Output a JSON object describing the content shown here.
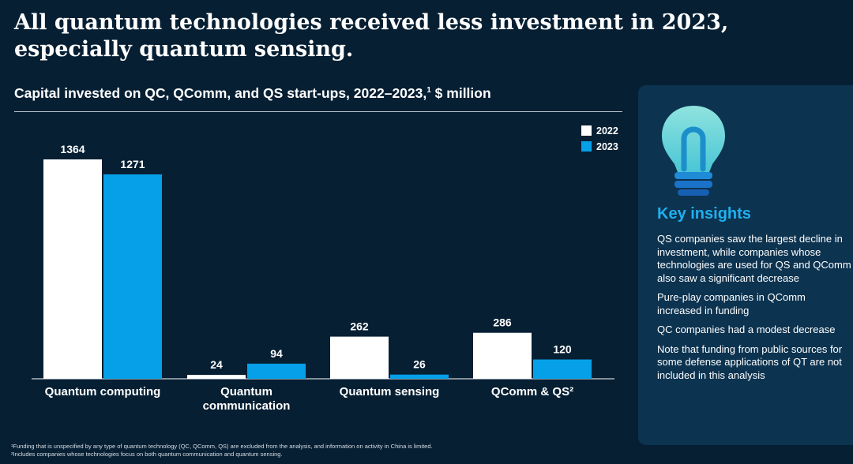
{
  "headline": "All quantum technologies received less investment in 2023, especially quantum sensing.",
  "subtitle": {
    "text": "Capital invested on QC, QComm, and QS start-ups, 2022–2023,",
    "footnote_marker": "1",
    "unit": " $ million"
  },
  "colors": {
    "background": "#061f33",
    "series_2022": "#ffffff",
    "series_2023": "#06a0e9",
    "accent": "#1fb0ef",
    "panel": "#0c3350"
  },
  "chart_data": {
    "type": "bar",
    "categories": [
      "Quantum computing",
      "Quantum communication",
      "Quantum sensing",
      "QComm & QS²"
    ],
    "category_lines": [
      [
        "Quantum computing"
      ],
      [
        "Quantum",
        "communication"
      ],
      [
        "Quantum sensing"
      ],
      [
        "QComm & QS²"
      ]
    ],
    "series": [
      {
        "name": "2022",
        "values": [
          1364,
          24,
          262,
          286
        ],
        "color": "#ffffff"
      },
      {
        "name": "2023",
        "values": [
          1271,
          94,
          26,
          120
        ],
        "color": "#06a0e9"
      }
    ],
    "legend_position": "top-right",
    "grid": false,
    "ylim": [
      0,
      1364
    ]
  },
  "insights": {
    "title": "Key insights",
    "items": [
      "QS companies saw the largest decline in investment, while companies whose technologies are used for QS and QComm also saw a significant decrease",
      "Pure-play companies in QComm increased in funding",
      "QC companies had a modest decrease",
      "Note that funding from public sources for some defense applications of QT are not included in this analysis"
    ],
    "icon": "lightbulb-icon"
  },
  "footnotes": [
    "¹Funding that is unspecified by any type of quantum technology (QC, QComm, QS) are excluded from the analysis, and information on activity in China is limited.",
    "²Includes companies whose technologies focus on both quantum communication and quantum sensing."
  ]
}
